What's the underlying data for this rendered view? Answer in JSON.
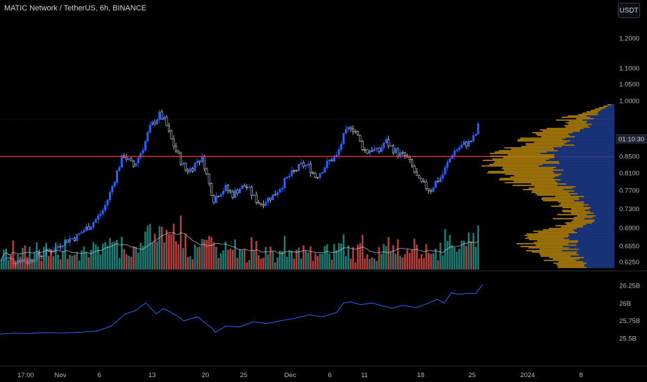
{
  "header": {
    "symbol_title": "MATIC Network / TetherUS, 6h, BINANCE",
    "currency_button": "USDT"
  },
  "countdown": "01:10:30",
  "chart_data": [
    {
      "type": "candlestick",
      "price_axis_ticks": [
        "1.2000",
        "1.1000",
        "1.0500",
        "1.0000",
        "0.9000",
        "0.8500",
        "0.8100",
        "0.7700",
        "0.7300",
        "0.6900",
        "0.6550",
        "0.6250"
      ],
      "time_axis_labels": [
        "17:00",
        "Nov",
        "6",
        "13",
        "20",
        "25",
        "Dec",
        "6",
        "11",
        "18",
        "25",
        "2024",
        "8"
      ],
      "log_scale": true,
      "horizontal_line_price": 0.85,
      "last_price": 0.945,
      "price_path": [
        [
          0,
          0.628
        ],
        [
          10,
          0.632
        ],
        [
          20,
          0.626
        ],
        [
          30,
          0.63
        ],
        [
          40,
          0.625
        ],
        [
          50,
          0.634
        ],
        [
          60,
          0.638
        ],
        [
          70,
          0.645
        ],
        [
          80,
          0.65
        ],
        [
          90,
          0.662
        ],
        [
          100,
          0.668
        ],
        [
          110,
          0.672
        ],
        [
          120,
          0.685
        ],
        [
          130,
          0.695
        ],
        [
          140,
          0.71
        ],
        [
          150,
          0.73
        ],
        [
          160,
          0.77
        ],
        [
          170,
          0.82
        ],
        [
          178,
          0.855
        ],
        [
          185,
          0.84
        ],
        [
          192,
          0.825
        ],
        [
          200,
          0.85
        ],
        [
          208,
          0.88
        ],
        [
          215,
          0.92
        ],
        [
          222,
          0.94
        ],
        [
          230,
          0.96
        ],
        [
          238,
          0.94
        ],
        [
          245,
          0.9
        ],
        [
          252,
          0.87
        ],
        [
          260,
          0.84
        ],
        [
          268,
          0.815
        ],
        [
          276,
          0.82
        ],
        [
          284,
          0.84
        ],
        [
          292,
          0.845
        ],
        [
          300,
          0.79
        ],
        [
          308,
          0.75
        ],
        [
          316,
          0.765
        ],
        [
          325,
          0.775
        ],
        [
          335,
          0.76
        ],
        [
          345,
          0.775
        ],
        [
          355,
          0.78
        ],
        [
          365,
          0.755
        ],
        [
          375,
          0.74
        ],
        [
          385,
          0.75
        ],
        [
          395,
          0.76
        ],
        [
          405,
          0.78
        ],
        [
          415,
          0.8
        ],
        [
          425,
          0.815
        ],
        [
          435,
          0.83
        ],
        [
          445,
          0.825
        ],
        [
          455,
          0.8
        ],
        [
          465,
          0.82
        ],
        [
          475,
          0.84
        ],
        [
          485,
          0.85
        ],
        [
          495,
          0.9
        ],
        [
          505,
          0.93
        ],
        [
          512,
          0.915
        ],
        [
          520,
          0.88
        ],
        [
          528,
          0.86
        ],
        [
          535,
          0.87
        ],
        [
          545,
          0.86
        ],
        [
          555,
          0.89
        ],
        [
          565,
          0.87
        ],
        [
          575,
          0.855
        ],
        [
          585,
          0.85
        ],
        [
          595,
          0.82
        ],
        [
          603,
          0.79
        ],
        [
          612,
          0.78
        ],
        [
          620,
          0.77
        ],
        [
          628,
          0.79
        ],
        [
          636,
          0.8
        ],
        [
          644,
          0.83
        ],
        [
          652,
          0.86
        ],
        [
          660,
          0.87
        ],
        [
          668,
          0.88
        ],
        [
          676,
          0.885
        ],
        [
          684,
          0.9
        ],
        [
          692,
          0.945
        ]
      ]
    },
    {
      "type": "bar",
      "name": "volume",
      "color_up": "#26a69a",
      "color_down": "#ef5350"
    },
    {
      "type": "line",
      "name": "indicator",
      "y_ticks": [
        "26.25B",
        "26B",
        "25.75B",
        "25.5B"
      ],
      "x": [
        0,
        20,
        40,
        60,
        80,
        100,
        120,
        140,
        160,
        170,
        180,
        195,
        210,
        215,
        225,
        235,
        245,
        255,
        265,
        275,
        285,
        295,
        305,
        310,
        325,
        345,
        365,
        385,
        405,
        425,
        445,
        465,
        485,
        495,
        505,
        520,
        535,
        550,
        565,
        580,
        600,
        615,
        630,
        640,
        650,
        660,
        675,
        685,
        695
      ],
      "values": [
        25.56,
        25.57,
        25.565,
        25.575,
        25.58,
        25.575,
        25.59,
        25.6,
        25.67,
        25.76,
        25.84,
        25.9,
        26.0,
        25.95,
        25.85,
        25.92,
        25.88,
        25.82,
        25.75,
        25.78,
        25.8,
        25.72,
        25.65,
        25.58,
        25.67,
        25.66,
        25.73,
        25.71,
        25.75,
        25.78,
        25.83,
        25.8,
        25.87,
        26.0,
        26.02,
        25.98,
        26.0,
        25.96,
        25.93,
        25.97,
        25.94,
        25.99,
        26.05,
        26.0,
        26.15,
        26.12,
        26.14,
        26.13,
        26.26
      ]
    }
  ],
  "colors": {
    "candle_up": "#2962ff",
    "candle_down": "#2962ff",
    "price_line": "#f23645",
    "profile_up": "#b8860b",
    "profile_down": "#1e3a8a",
    "indicator_line": "#2962ff",
    "ma_line": "#d1d4dc"
  }
}
